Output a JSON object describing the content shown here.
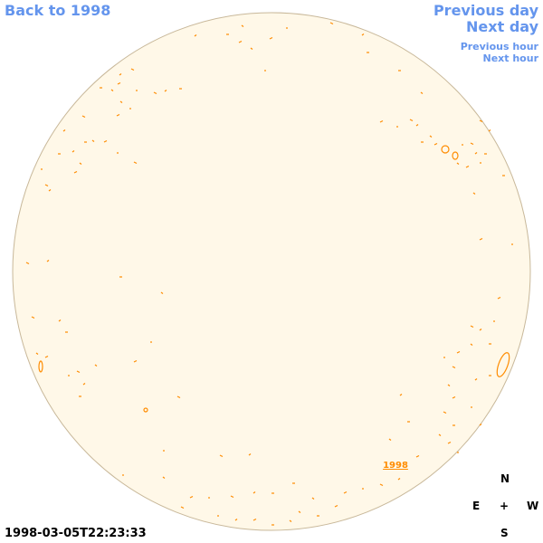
{
  "nav": {
    "back": "Back to 1998",
    "previous_day": "Previous day",
    "next_day": "Next day",
    "previous_hour": "Previous hour",
    "next_hour": "Next hour"
  },
  "annotation": "1998",
  "compass": {
    "north": "N",
    "east": "E",
    "center": "+",
    "west": "W",
    "south": "S"
  },
  "timestamp": "1998-03-05T22:23:33"
}
